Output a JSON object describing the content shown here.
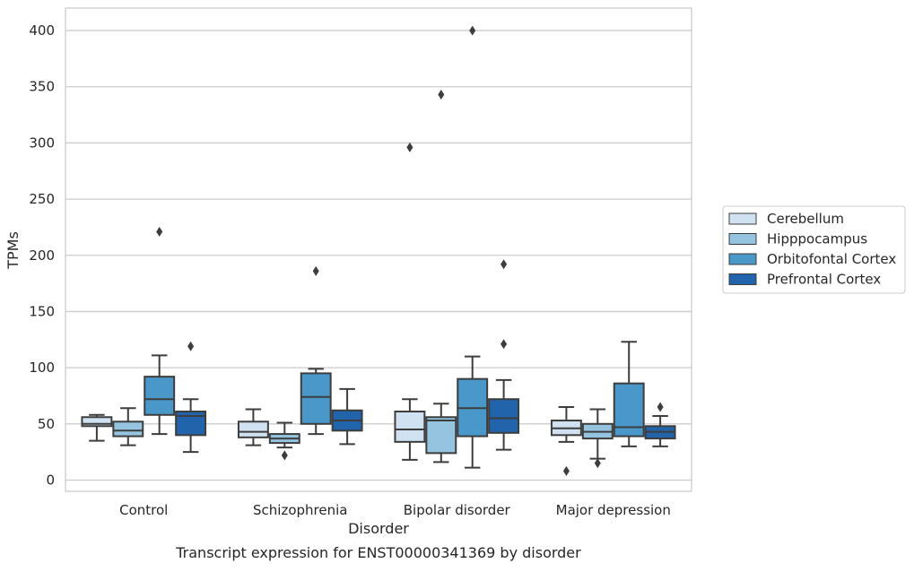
{
  "chart_data": {
    "type": "box",
    "title": "",
    "caption": "Transcript expression for ENST00000341369 by disorder",
    "xlabel": "Disorder",
    "ylabel": "TPMs",
    "ylim": [
      -10,
      420
    ],
    "yticks": [
      0,
      50,
      100,
      150,
      200,
      250,
      300,
      350,
      400
    ],
    "grid": "horizontal",
    "legend_position": "right",
    "categories": [
      "Control",
      "Schizophrenia",
      "Bipolar disorder",
      "Major depression"
    ],
    "series": [
      {
        "name": "Cerebellum",
        "color": "#d0e1f2",
        "boxes": [
          {
            "whisker_low": 35,
            "q1": 48,
            "median": 50,
            "q3": 56,
            "whisker_high": 58,
            "outliers": []
          },
          {
            "whisker_low": 31,
            "q1": 38,
            "median": 43,
            "q3": 52,
            "whisker_high": 63,
            "outliers": []
          },
          {
            "whisker_low": 18,
            "q1": 34,
            "median": 45,
            "q3": 61,
            "whisker_high": 72,
            "outliers": [
              296
            ]
          },
          {
            "whisker_low": 34,
            "q1": 40,
            "median": 46,
            "q3": 53,
            "whisker_high": 65,
            "outliers": [
              8
            ]
          }
        ]
      },
      {
        "name": "Hipppocampus",
        "color": "#94c4df",
        "boxes": [
          {
            "whisker_low": 31,
            "q1": 39,
            "median": 44,
            "q3": 52,
            "whisker_high": 64,
            "outliers": []
          },
          {
            "whisker_low": 29,
            "q1": 33,
            "median": 37,
            "q3": 41,
            "whisker_high": 51,
            "outliers": [
              22
            ]
          },
          {
            "whisker_low": 16,
            "q1": 24,
            "median": 53,
            "q3": 56,
            "whisker_high": 68,
            "outliers": [
              343
            ]
          },
          {
            "whisker_low": 19,
            "q1": 37,
            "median": 43,
            "q3": 50,
            "whisker_high": 63,
            "outliers": [
              15
            ]
          }
        ]
      },
      {
        "name": "Orbitofontal Cortex",
        "color": "#4a98c9",
        "boxes": [
          {
            "whisker_low": 41,
            "q1": 58,
            "median": 72,
            "q3": 92,
            "whisker_high": 111,
            "outliers": [
              221
            ]
          },
          {
            "whisker_low": 41,
            "q1": 50,
            "median": 74,
            "q3": 95,
            "whisker_high": 99,
            "outliers": [
              186
            ]
          },
          {
            "whisker_low": 11,
            "q1": 39,
            "median": 64,
            "q3": 90,
            "whisker_high": 110,
            "outliers": [
              400
            ]
          },
          {
            "whisker_low": 30,
            "q1": 39,
            "median": 47,
            "q3": 86,
            "whisker_high": 123,
            "outliers": []
          }
        ]
      },
      {
        "name": "Prefrontal Cortex",
        "color": "#2164ab",
        "boxes": [
          {
            "whisker_low": 25,
            "q1": 40,
            "median": 57,
            "q3": 61,
            "whisker_high": 72,
            "outliers": [
              119
            ]
          },
          {
            "whisker_low": 32,
            "q1": 44,
            "median": 53,
            "q3": 62,
            "whisker_high": 81,
            "outliers": []
          },
          {
            "whisker_low": 27,
            "q1": 42,
            "median": 55,
            "q3": 72,
            "whisker_high": 89,
            "outliers": [
              121,
              192
            ]
          },
          {
            "whisker_low": 30,
            "q1": 37,
            "median": 43,
            "q3": 48,
            "whisker_high": 57,
            "outliers": [
              65
            ]
          }
        ]
      }
    ]
  }
}
